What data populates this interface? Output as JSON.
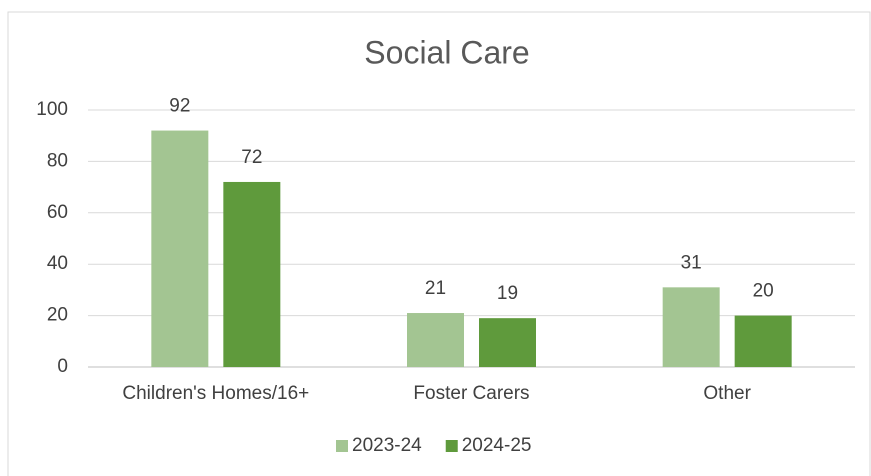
{
  "chart_data": {
    "type": "bar",
    "title": "Social Care",
    "categories": [
      "Children's Homes/16+",
      "Foster Carers",
      "Other"
    ],
    "series": [
      {
        "name": "2023-24",
        "color": "#a3c592",
        "values": [
          92,
          21,
          31
        ]
      },
      {
        "name": "2024-25",
        "color": "#5f9a3c",
        "values": [
          72,
          19,
          20
        ]
      }
    ],
    "ylim": [
      0,
      100
    ],
    "yticks": [
      0,
      20,
      40,
      60,
      80,
      100
    ],
    "grid": true,
    "legend": "bottom"
  }
}
